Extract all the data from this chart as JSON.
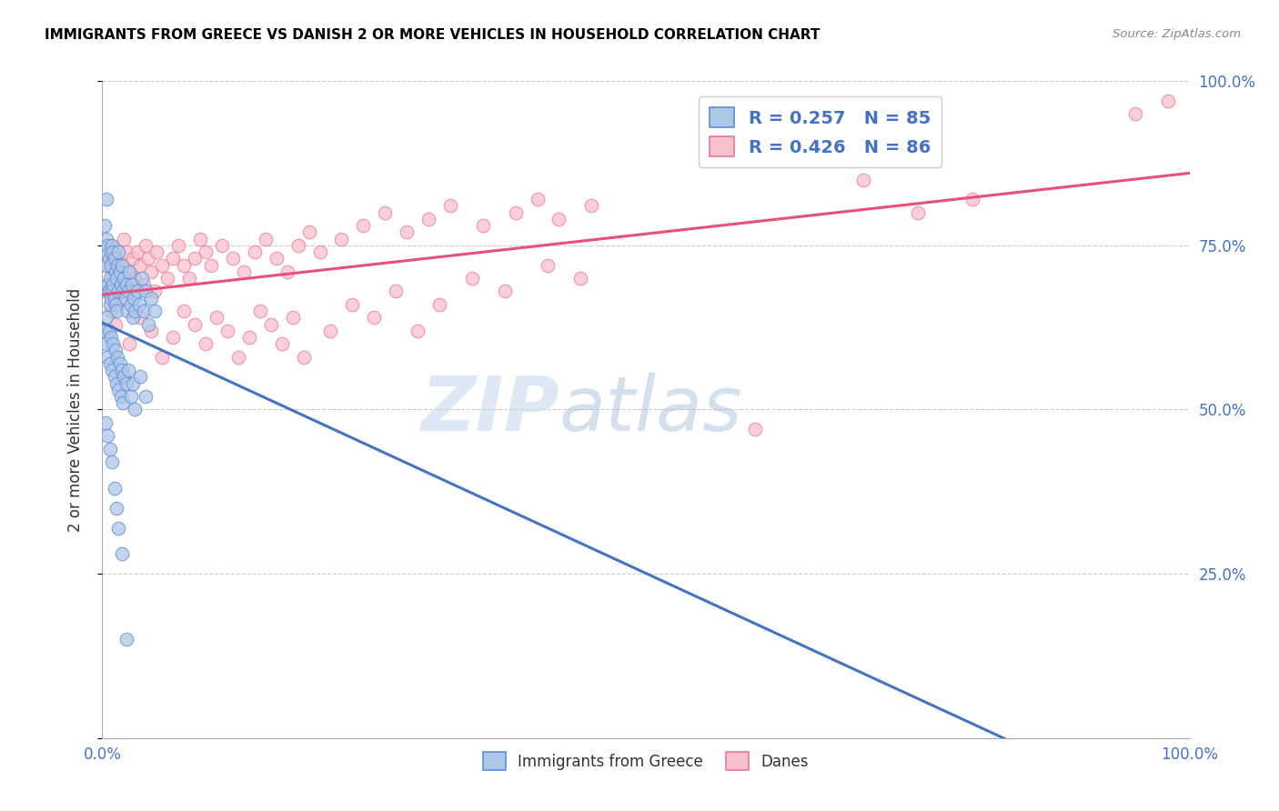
{
  "title": "IMMIGRANTS FROM GREECE VS DANISH 2 OR MORE VEHICLES IN HOUSEHOLD CORRELATION CHART",
  "source": "Source: ZipAtlas.com",
  "ylabel": "2 or more Vehicles in Household",
  "legend_label1": "Immigrants from Greece",
  "legend_label2": "Danes",
  "r1": 0.257,
  "n1": 85,
  "r2": 0.426,
  "n2": 86,
  "color_blue_fill": "#aec6e8",
  "color_blue_edge": "#5b8fd4",
  "color_blue_line": "#4472c4",
  "color_pink_fill": "#f9c0ce",
  "color_pink_edge": "#e87a9a",
  "color_pink_line": "#e8507a",
  "color_text_blue": "#4472c4",
  "blue_x": [
    0.002,
    0.003,
    0.003,
    0.004,
    0.004,
    0.005,
    0.005,
    0.006,
    0.006,
    0.007,
    0.007,
    0.007,
    0.008,
    0.008,
    0.009,
    0.009,
    0.01,
    0.01,
    0.011,
    0.011,
    0.012,
    0.012,
    0.013,
    0.013,
    0.014,
    0.015,
    0.015,
    0.016,
    0.017,
    0.018,
    0.019,
    0.02,
    0.021,
    0.022,
    0.023,
    0.024,
    0.025,
    0.026,
    0.027,
    0.028,
    0.029,
    0.03,
    0.032,
    0.034,
    0.036,
    0.038,
    0.04,
    0.042,
    0.045,
    0.048,
    0.002,
    0.003,
    0.004,
    0.005,
    0.006,
    0.007,
    0.008,
    0.009,
    0.01,
    0.011,
    0.012,
    0.013,
    0.014,
    0.015,
    0.016,
    0.017,
    0.018,
    0.019,
    0.02,
    0.022,
    0.024,
    0.026,
    0.028,
    0.03,
    0.035,
    0.04,
    0.003,
    0.005,
    0.007,
    0.009,
    0.011,
    0.013,
    0.015,
    0.018,
    0.022
  ],
  "blue_y": [
    0.78,
    0.72,
    0.68,
    0.82,
    0.76,
    0.75,
    0.69,
    0.73,
    0.68,
    0.74,
    0.7,
    0.66,
    0.72,
    0.67,
    0.75,
    0.68,
    0.74,
    0.69,
    0.73,
    0.67,
    0.71,
    0.66,
    0.7,
    0.65,
    0.72,
    0.74,
    0.68,
    0.71,
    0.69,
    0.72,
    0.68,
    0.7,
    0.67,
    0.69,
    0.65,
    0.68,
    0.71,
    0.66,
    0.69,
    0.64,
    0.67,
    0.65,
    0.68,
    0.66,
    0.7,
    0.65,
    0.68,
    0.63,
    0.67,
    0.65,
    0.62,
    0.6,
    0.64,
    0.58,
    0.62,
    0.57,
    0.61,
    0.56,
    0.6,
    0.55,
    0.59,
    0.54,
    0.58,
    0.53,
    0.57,
    0.52,
    0.56,
    0.51,
    0.55,
    0.54,
    0.56,
    0.52,
    0.54,
    0.5,
    0.55,
    0.52,
    0.48,
    0.46,
    0.44,
    0.42,
    0.38,
    0.35,
    0.32,
    0.28,
    0.15
  ],
  "pink_x": [
    0.005,
    0.008,
    0.01,
    0.012,
    0.015,
    0.018,
    0.02,
    0.022,
    0.025,
    0.028,
    0.03,
    0.032,
    0.035,
    0.038,
    0.04,
    0.042,
    0.045,
    0.048,
    0.05,
    0.055,
    0.06,
    0.065,
    0.07,
    0.075,
    0.08,
    0.085,
    0.09,
    0.095,
    0.1,
    0.11,
    0.12,
    0.13,
    0.14,
    0.15,
    0.16,
    0.17,
    0.18,
    0.19,
    0.2,
    0.22,
    0.24,
    0.26,
    0.28,
    0.3,
    0.32,
    0.35,
    0.38,
    0.4,
    0.42,
    0.45,
    0.008,
    0.012,
    0.018,
    0.025,
    0.035,
    0.045,
    0.055,
    0.065,
    0.075,
    0.085,
    0.095,
    0.105,
    0.115,
    0.125,
    0.135,
    0.145,
    0.155,
    0.165,
    0.175,
    0.185,
    0.21,
    0.23,
    0.25,
    0.27,
    0.29,
    0.31,
    0.34,
    0.37,
    0.41,
    0.44,
    0.6,
    0.7,
    0.75,
    0.8,
    0.95,
    0.98
  ],
  "pink_y": [
    0.72,
    0.75,
    0.7,
    0.73,
    0.68,
    0.72,
    0.76,
    0.74,
    0.71,
    0.73,
    0.7,
    0.74,
    0.72,
    0.69,
    0.75,
    0.73,
    0.71,
    0.68,
    0.74,
    0.72,
    0.7,
    0.73,
    0.75,
    0.72,
    0.7,
    0.73,
    0.76,
    0.74,
    0.72,
    0.75,
    0.73,
    0.71,
    0.74,
    0.76,
    0.73,
    0.71,
    0.75,
    0.77,
    0.74,
    0.76,
    0.78,
    0.8,
    0.77,
    0.79,
    0.81,
    0.78,
    0.8,
    0.82,
    0.79,
    0.81,
    0.65,
    0.63,
    0.67,
    0.6,
    0.64,
    0.62,
    0.58,
    0.61,
    0.65,
    0.63,
    0.6,
    0.64,
    0.62,
    0.58,
    0.61,
    0.65,
    0.63,
    0.6,
    0.64,
    0.58,
    0.62,
    0.66,
    0.64,
    0.68,
    0.62,
    0.66,
    0.7,
    0.68,
    0.72,
    0.7,
    0.47,
    0.85,
    0.8,
    0.82,
    0.95,
    0.97
  ]
}
